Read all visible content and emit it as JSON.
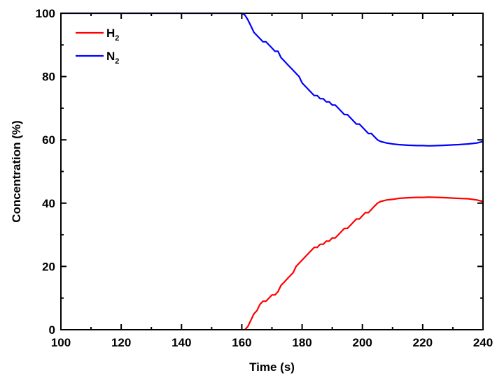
{
  "chart_data": {
    "type": "line",
    "xlabel": "Time (s)",
    "ylabel": "Concentration (%)",
    "xlim": [
      100,
      240
    ],
    "ylim": [
      0,
      100
    ],
    "xticks": [
      100,
      120,
      140,
      160,
      180,
      200,
      220,
      240
    ],
    "yticks": [
      0,
      20,
      40,
      60,
      80,
      100
    ],
    "grid": false,
    "legend_position": "top-left",
    "series": [
      {
        "name": "H2",
        "label_main": "H",
        "label_sub": "2",
        "color": "#ff0000",
        "x": [
          161,
          162,
          163,
          164,
          165,
          166,
          167,
          168,
          169,
          170,
          171,
          172,
          173,
          174,
          175,
          176,
          177,
          178,
          179,
          180,
          181,
          182,
          183,
          184,
          185,
          186,
          187,
          188,
          189,
          190,
          191,
          192,
          193,
          194,
          195,
          196,
          197,
          198,
          199,
          200,
          201,
          202,
          203,
          204,
          205,
          206,
          208,
          210,
          212,
          215,
          218,
          220,
          222,
          225,
          228,
          230,
          232,
          235,
          238,
          240
        ],
        "y": [
          0,
          1,
          3,
          5,
          6,
          8,
          9,
          9,
          10,
          11,
          11,
          12,
          14,
          15,
          16,
          17,
          18,
          20,
          21,
          22,
          23,
          24,
          25,
          26,
          26,
          27,
          27,
          28,
          28,
          29,
          29,
          30,
          31,
          32,
          32,
          33,
          34,
          35,
          35,
          36,
          37,
          37,
          38,
          39,
          40,
          40.5,
          41,
          41.2,
          41.5,
          41.7,
          41.8,
          41.8,
          41.9,
          41.8,
          41.7,
          41.6,
          41.5,
          41.4,
          41,
          40.5
        ]
      },
      {
        "name": "N2",
        "label_main": "N",
        "label_sub": "2",
        "color": "#0000ff",
        "x": [
          100,
          110,
          120,
          130,
          140,
          150,
          158,
          160,
          161,
          162,
          163,
          164,
          165,
          166,
          167,
          168,
          169,
          170,
          171,
          172,
          173,
          174,
          175,
          176,
          177,
          178,
          179,
          180,
          181,
          182,
          183,
          184,
          185,
          186,
          187,
          188,
          189,
          190,
          191,
          192,
          193,
          194,
          195,
          196,
          197,
          198,
          199,
          200,
          201,
          202,
          203,
          204,
          205,
          206,
          208,
          210,
          212,
          215,
          218,
          220,
          222,
          225,
          228,
          230,
          232,
          235,
          238,
          240
        ],
        "y": [
          100,
          100,
          100,
          100,
          100,
          100,
          100,
          100,
          99.5,
          98,
          96,
          94,
          93,
          92,
          91,
          91,
          90,
          89,
          88,
          88,
          86,
          85,
          84,
          83,
          82,
          81,
          80,
          78,
          77,
          76,
          75,
          74,
          74,
          73,
          73,
          72,
          72,
          71,
          71,
          70,
          69,
          68,
          68,
          67,
          66,
          65,
          65,
          64,
          63,
          62,
          62,
          61,
          60,
          59.5,
          59,
          58.7,
          58.5,
          58.3,
          58.2,
          58.2,
          58.1,
          58.2,
          58.3,
          58.4,
          58.5,
          58.7,
          59,
          59.5
        ]
      }
    ]
  }
}
